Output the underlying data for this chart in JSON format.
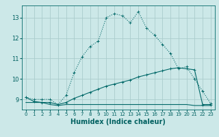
{
  "xlabel": "Humidex (Indice chaleur)",
  "background_color": "#cce8e8",
  "grid_color": "#aacccc",
  "line_color": "#006868",
  "xlim": [
    -0.5,
    23.5
  ],
  "ylim": [
    8.5,
    13.6
  ],
  "yticks": [
    9,
    10,
    11,
    12,
    13
  ],
  "xticks": [
    0,
    1,
    2,
    3,
    4,
    5,
    6,
    7,
    8,
    9,
    10,
    11,
    12,
    13,
    14,
    15,
    16,
    17,
    18,
    19,
    20,
    21,
    22,
    23
  ],
  "line1_x": [
    0,
    1,
    2,
    3,
    4,
    5,
    6,
    7,
    8,
    9,
    10,
    11,
    12,
    13,
    14,
    15,
    16,
    17,
    18,
    19,
    20,
    21,
    22,
    23
  ],
  "line1_y": [
    9.1,
    9.0,
    9.0,
    9.0,
    8.75,
    9.2,
    10.3,
    11.1,
    11.6,
    11.85,
    13.0,
    13.2,
    13.1,
    12.75,
    13.3,
    12.5,
    12.15,
    11.7,
    11.25,
    10.5,
    10.6,
    10.0,
    9.4,
    8.8
  ],
  "line2_x": [
    0,
    1,
    2,
    3,
    4,
    5,
    6,
    7,
    8,
    9,
    10,
    11,
    12,
    13,
    14,
    15,
    16,
    17,
    18,
    19,
    20,
    21,
    22,
    23
  ],
  "line2_y": [
    9.1,
    8.9,
    8.85,
    8.85,
    8.75,
    8.85,
    9.05,
    9.2,
    9.35,
    9.5,
    9.65,
    9.75,
    9.85,
    9.95,
    10.1,
    10.2,
    10.3,
    10.4,
    10.5,
    10.55,
    10.5,
    10.45,
    8.75,
    8.75
  ],
  "line3_x": [
    0,
    1,
    2,
    3,
    4,
    5,
    6,
    7,
    8,
    9,
    10,
    11,
    12,
    13,
    14,
    15,
    16,
    17,
    18,
    19,
    20,
    21,
    22,
    23
  ],
  "line3_y": [
    8.85,
    8.85,
    8.85,
    8.75,
    8.7,
    8.75,
    8.75,
    8.75,
    8.75,
    8.75,
    8.75,
    8.75,
    8.75,
    8.75,
    8.75,
    8.75,
    8.75,
    8.75,
    8.75,
    8.75,
    8.75,
    8.7,
    8.7,
    8.7
  ],
  "font_color": "#006060",
  "xlabel_fontsize": 7,
  "tick_fontsize": 5,
  "ytick_fontsize": 6
}
